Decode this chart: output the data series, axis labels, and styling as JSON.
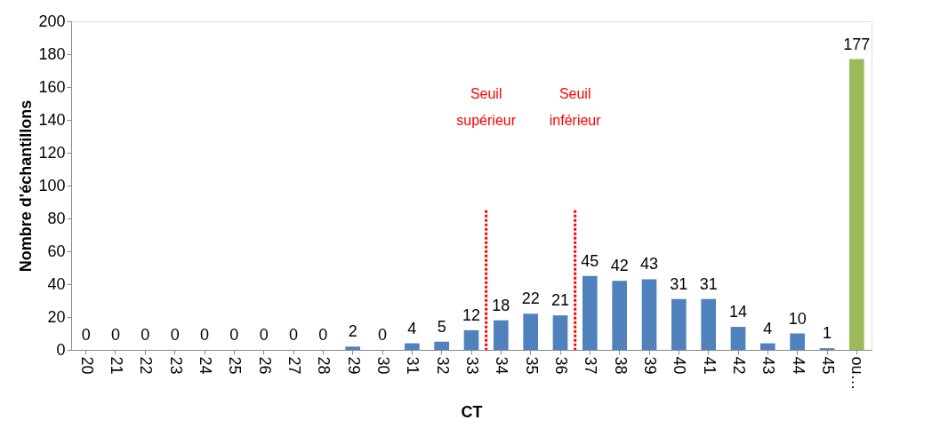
{
  "chart_data": {
    "type": "bar",
    "xlabel": "CT",
    "ylabel": "Nombre d'échantillons",
    "categories": [
      "20",
      "21",
      "22",
      "23",
      "24",
      "25",
      "26",
      "27",
      "28",
      "29",
      "30",
      "31",
      "32",
      "33",
      "34",
      "35",
      "36",
      "37",
      "38",
      "39",
      "40",
      "41",
      "42",
      "43",
      "44",
      "45",
      "ou…"
    ],
    "values": [
      0,
      0,
      0,
      0,
      0,
      0,
      0,
      0,
      0,
      2,
      0,
      4,
      5,
      12,
      18,
      22,
      21,
      45,
      42,
      43,
      31,
      31,
      14,
      4,
      10,
      1,
      177
    ],
    "colors": [
      "#4f81bd",
      "#4f81bd",
      "#4f81bd",
      "#4f81bd",
      "#4f81bd",
      "#4f81bd",
      "#4f81bd",
      "#4f81bd",
      "#4f81bd",
      "#4f81bd",
      "#4f81bd",
      "#4f81bd",
      "#4f81bd",
      "#4f81bd",
      "#4f81bd",
      "#4f81bd",
      "#4f81bd",
      "#4f81bd",
      "#4f81bd",
      "#4f81bd",
      "#4f81bd",
      "#4f81bd",
      "#4f81bd",
      "#4f81bd",
      "#4f81bd",
      "#4f81bd",
      "#9bbb59"
    ],
    "ylim": [
      0,
      200
    ],
    "yticks": [
      0,
      20,
      40,
      60,
      80,
      100,
      120,
      140,
      160,
      180,
      200
    ],
    "data_labels": true,
    "grid": false,
    "ref_lines": [
      {
        "axis": "x",
        "value": "33",
        "label": "Seuil\nsupérieur",
        "color": "#ff0000",
        "line_style": "dotted"
      },
      {
        "axis": "x",
        "value": "36",
        "label": "Seuil\ninférieur",
        "color": "#ff0000",
        "line_style": "dotted"
      }
    ]
  }
}
